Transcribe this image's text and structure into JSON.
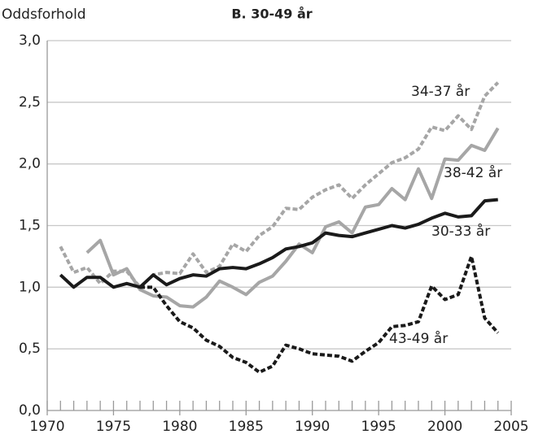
{
  "chart_data": {
    "type": "line",
    "title": "B. 30-49 år",
    "ylabel": "Oddsforhold",
    "x": [
      1971,
      1972,
      1973,
      1974,
      1975,
      1976,
      1977,
      1978,
      1979,
      1980,
      1981,
      1982,
      1983,
      1984,
      1985,
      1986,
      1987,
      1988,
      1989,
      1990,
      1991,
      1992,
      1993,
      1994,
      1995,
      1996,
      1997,
      1998,
      1999,
      2000,
      2001,
      2002,
      2003,
      2004
    ],
    "series": [
      {
        "name": "34-37 år",
        "color": "#a6a6a6",
        "dashed": true,
        "values": [
          1.33,
          1.12,
          1.16,
          1.03,
          1.13,
          1.13,
          1.0,
          1.1,
          1.12,
          1.11,
          1.27,
          1.12,
          1.17,
          1.35,
          1.29,
          1.42,
          1.49,
          1.64,
          1.63,
          1.73,
          1.79,
          1.83,
          1.72,
          1.83,
          1.92,
          2.01,
          2.05,
          2.12,
          2.3,
          2.27,
          2.39,
          2.28,
          2.55,
          2.66
        ]
      },
      {
        "name": "38-42 år",
        "color": "#a6a6a6",
        "dashed": false,
        "values": [
          null,
          null,
          1.28,
          1.38,
          1.1,
          1.15,
          0.98,
          0.93,
          0.92,
          0.85,
          0.84,
          0.92,
          1.05,
          1.0,
          0.94,
          1.04,
          1.09,
          1.21,
          1.35,
          1.28,
          1.49,
          1.53,
          1.44,
          1.65,
          1.67,
          1.8,
          1.71,
          1.96,
          1.72,
          2.04,
          2.03,
          2.15,
          2.11,
          2.29
        ]
      },
      {
        "name": "30-33 år",
        "color": "#1a1a1a",
        "dashed": false,
        "values": [
          1.1,
          1.0,
          1.08,
          1.08,
          1.0,
          1.03,
          1.0,
          1.1,
          1.02,
          1.07,
          1.1,
          1.09,
          1.15,
          1.16,
          1.15,
          1.19,
          1.24,
          1.31,
          1.33,
          1.36,
          1.44,
          1.42,
          1.41,
          1.44,
          1.47,
          1.5,
          1.48,
          1.51,
          1.56,
          1.6,
          1.57,
          1.58,
          1.7,
          1.71
        ]
      },
      {
        "name": "43-49 år",
        "color": "#1a1a1a",
        "dashed": true,
        "values": [
          null,
          null,
          null,
          null,
          null,
          null,
          1.0,
          1.0,
          0.85,
          0.72,
          0.67,
          0.57,
          0.52,
          0.43,
          0.39,
          0.31,
          0.36,
          0.53,
          0.5,
          0.46,
          0.45,
          0.44,
          0.4,
          0.48,
          0.55,
          0.68,
          0.69,
          0.72,
          1.01,
          0.9,
          0.94,
          1.25,
          0.75,
          0.63
        ]
      }
    ],
    "xlim": [
      1970,
      2005
    ],
    "xticks": [
      1970,
      1975,
      1980,
      1985,
      1990,
      1995,
      2000,
      2005
    ],
    "xminorticks": [
      1971,
      1972,
      1973,
      1974,
      1976,
      1977,
      1978,
      1979,
      1981,
      1982,
      1983,
      1984,
      1986,
      1987,
      1988,
      1989,
      1991,
      1992,
      1993,
      1994,
      1996,
      1997,
      1998,
      1999,
      2001,
      2002,
      2003,
      2004
    ],
    "ylim": [
      0,
      3
    ],
    "yticks": [
      {
        "value": 0,
        "label": "0,0"
      },
      {
        "value": 0.5,
        "label": "0,5"
      },
      {
        "value": 1,
        "label": "1,0"
      },
      {
        "value": 1.5,
        "label": "1,5"
      },
      {
        "value": 2,
        "label": "2,0"
      },
      {
        "value": 2.5,
        "label": "2,5"
      },
      {
        "value": 3,
        "label": "3,0"
      }
    ],
    "grid": true
  }
}
